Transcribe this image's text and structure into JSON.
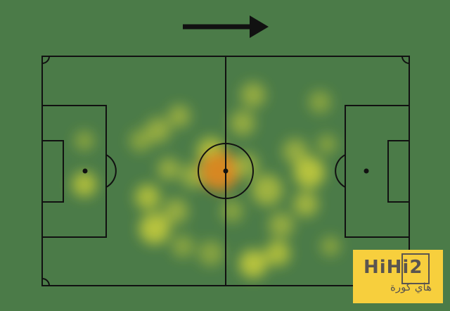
{
  "title": "",
  "attack_direction": "right",
  "colors": {
    "pitch": "#4b7b48",
    "lines": "#111111",
    "heat_low": "#d8d93a",
    "heat_high": "#f08a1c"
  },
  "watermark": {
    "brand": "HiHi2",
    "arabic": "هاي كورة"
  }
}
